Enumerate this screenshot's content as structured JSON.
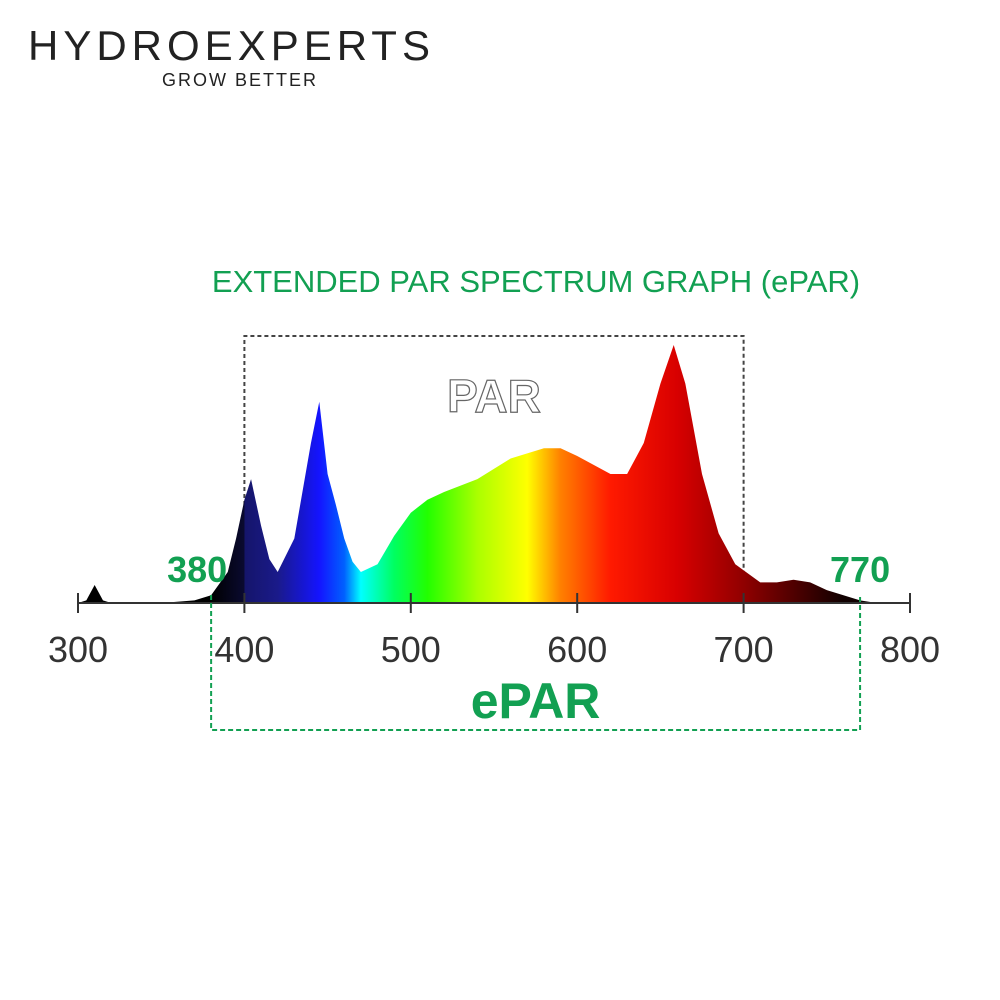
{
  "header": {
    "brand": "HYDROEXPERTS",
    "tagline": "GROW BETTER"
  },
  "chart_data": {
    "type": "area",
    "title": "EXTENDED PAR SPECTRUM GRAPH (ePAR)",
    "x": [
      300,
      305,
      310,
      315,
      320,
      350,
      370,
      380,
      390,
      395,
      400,
      404,
      410,
      415,
      420,
      430,
      440,
      445,
      450,
      455,
      460,
      465,
      470,
      480,
      490,
      500,
      510,
      520,
      540,
      560,
      580,
      590,
      600,
      620,
      630,
      640,
      650,
      658,
      665,
      675,
      685,
      695,
      710,
      720,
      730,
      740,
      750,
      760,
      770,
      780
    ],
    "values": [
      0,
      0.01,
      0.07,
      0.01,
      0,
      0,
      0.01,
      0.03,
      0.12,
      0.25,
      0.4,
      0.48,
      0.3,
      0.17,
      0.12,
      0.25,
      0.62,
      0.78,
      0.5,
      0.38,
      0.25,
      0.16,
      0.12,
      0.15,
      0.26,
      0.35,
      0.4,
      0.43,
      0.48,
      0.56,
      0.6,
      0.6,
      0.57,
      0.5,
      0.5,
      0.62,
      0.85,
      1.0,
      0.85,
      0.5,
      0.27,
      0.15,
      0.08,
      0.08,
      0.09,
      0.08,
      0.05,
      0.03,
      0.01,
      0
    ],
    "xlim": [
      300,
      800
    ],
    "xticks": [
      300,
      400,
      500,
      600,
      700,
      800
    ],
    "ylim": [
      0,
      1
    ],
    "par": {
      "label": "PAR",
      "range": [
        400,
        700
      ]
    },
    "epar": {
      "label": "ePAR",
      "range": [
        380,
        770
      ]
    }
  }
}
